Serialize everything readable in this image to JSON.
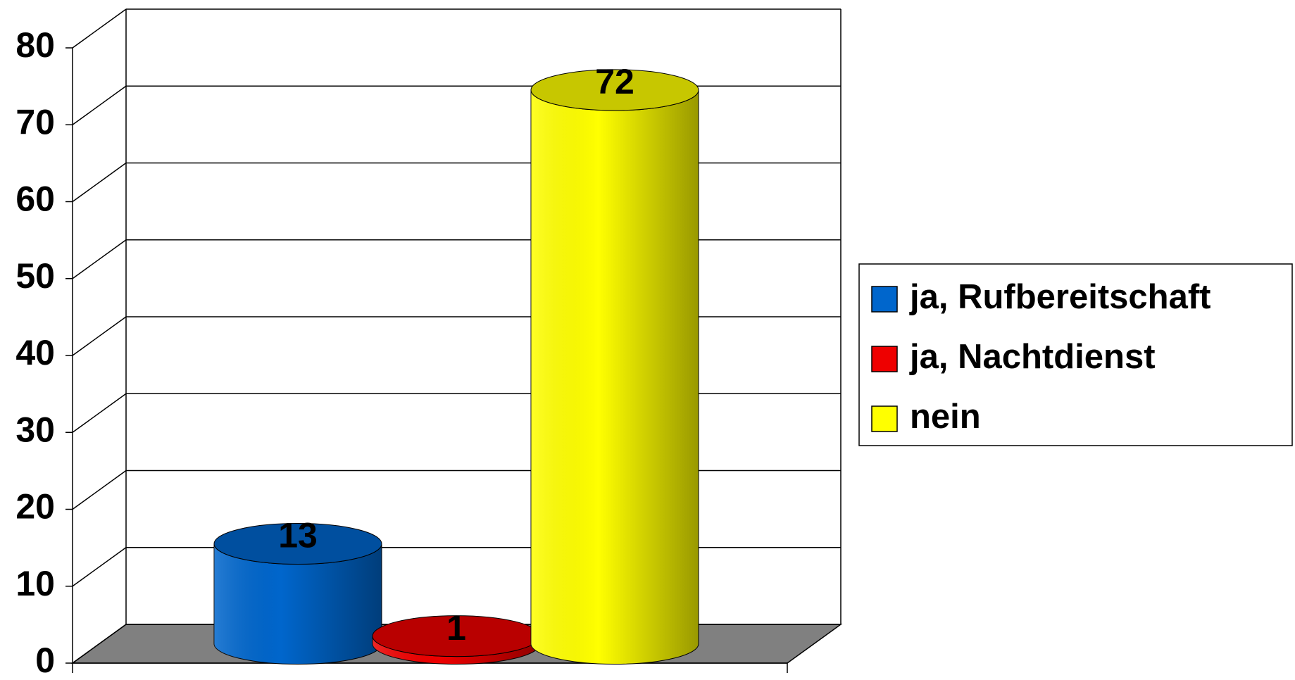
{
  "chart_data": {
    "type": "bar",
    "series": [
      {
        "name": "ja, Rufbereitschaft",
        "color": "#0066cc",
        "values": [
          13
        ]
      },
      {
        "name": "ja, Nachtdienst",
        "color": "#ee0000",
        "values": [
          1
        ]
      },
      {
        "name": "nein",
        "color": "#ffff00",
        "values": [
          72
        ]
      }
    ],
    "ylim": [
      0,
      80
    ],
    "yticks": [
      0,
      10,
      20,
      30,
      40,
      50,
      60,
      70,
      80
    ],
    "grid": true,
    "legend": "right"
  }
}
